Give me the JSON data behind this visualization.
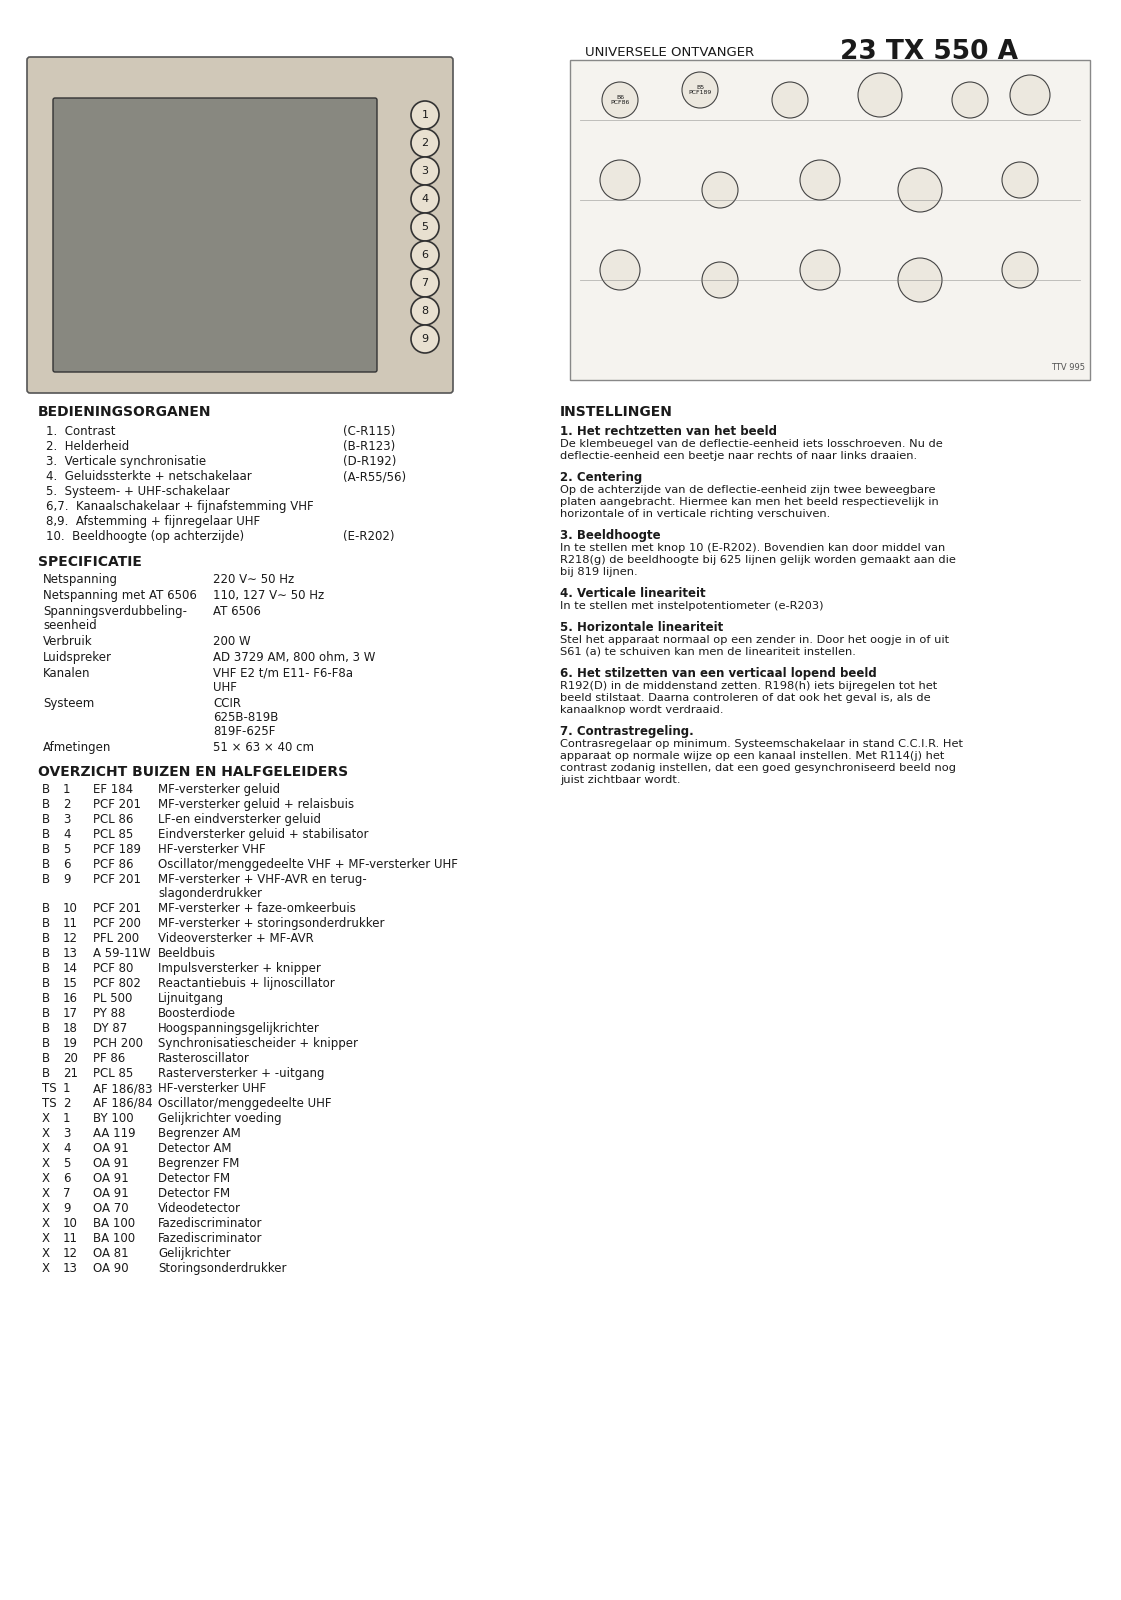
{
  "title_small": "UNIVERSELE ONTVANGER",
  "title_model": "23 TX 550 A",
  "bg_color": "#ffffff",
  "text_color": "#1a1a1a",
  "bedieningsorganen_title": "BEDIENINGSORGANEN",
  "bedieningsorganen_items": [
    [
      "1.  Contrast",
      "(C-R115)"
    ],
    [
      "2.  Helderheid",
      "(B-R123)"
    ],
    [
      "3.  Verticale synchronisatie",
      "(D-R192)"
    ],
    [
      "4.  Geluidssterkte + netschakelaar",
      "(A-R55/56)"
    ],
    [
      "5.  Systeem- + UHF-schakelaar",
      ""
    ],
    [
      "6,7.  Kanaalschakelaar + fijnafstemming VHF",
      ""
    ],
    [
      "8,9.  Afstemming + fijnregelaar UHF",
      ""
    ],
    [
      "10.  Beeldhoogte (op achterzijde)",
      "(E-R202)"
    ]
  ],
  "specificatie_title": "SPECIFICATIE",
  "specificatie_items": [
    [
      "Netspanning",
      "220 V∼ 50 Hz"
    ],
    [
      "Netspanning met AT 6506",
      "110, 127 V∼ 50 Hz"
    ],
    [
      "Spanningsverdubbeling-\nseenheid",
      "AT 6506"
    ],
    [
      "Verbruik",
      "200 W"
    ],
    [
      "Luidspreker",
      "AD 3729 AM, 800 ohm, 3 W"
    ],
    [
      "Kanalen",
      "VHF E2 t/m E11- F6-F8a\nUHF"
    ],
    [
      "Systeem",
      "CCIR\n625B-819B\n819F-625F"
    ],
    [
      "Afmetingen",
      "51 × 63 × 40 cm"
    ]
  ],
  "overzicht_title": "OVERZICHT BUIZEN EN HALFGELEIDERS",
  "overzicht_items": [
    [
      "B",
      "1",
      "EF 184",
      "MF-versterker geluid"
    ],
    [
      "B",
      "2",
      "PCF 201",
      "MF-versterker geluid + relaisbuis"
    ],
    [
      "B",
      "3",
      "PCL 86",
      "LF-en eindversterker geluid"
    ],
    [
      "B",
      "4",
      "PCL 85",
      "Eindversterker geluid + stabilisator"
    ],
    [
      "B",
      "5",
      "PCF 189",
      "HF-versterker VHF"
    ],
    [
      "B",
      "6",
      "PCF 86",
      "Oscillator/menggedeelte VHF + MF-versterker UHF"
    ],
    [
      "B",
      "9",
      "PCF 201",
      "MF-versterker + VHF-AVR en terug-\nslagonderdrukker"
    ],
    [
      "B",
      "10",
      "PCF 201",
      "MF-versterker + faze-omkeerbuis"
    ],
    [
      "B",
      "11",
      "PCF 200",
      "MF-versterker + storingsonderdrukker"
    ],
    [
      "B",
      "12",
      "PFL 200",
      "Videoversterker + MF-AVR"
    ],
    [
      "B",
      "13",
      "A 59-11W",
      "Beeldbuis"
    ],
    [
      "B",
      "14",
      "PCF 80",
      "Impulsversterker + knipper"
    ],
    [
      "B",
      "15",
      "PCF 802",
      "Reactantiebuis + lijnoscillator"
    ],
    [
      "B",
      "16",
      "PL 500",
      "Lijnuitgang"
    ],
    [
      "B",
      "17",
      "PY 88",
      "Boosterdiode"
    ],
    [
      "B",
      "18",
      "DY 87",
      "Hoogspanningsgelijkrichter"
    ],
    [
      "B",
      "19",
      "PCH 200",
      "Synchronisatiescheider + knipper"
    ],
    [
      "B",
      "20",
      "PF 86",
      "Rasteroscillator"
    ],
    [
      "B",
      "21",
      "PCL 85",
      "Rasterversterker + -uitgang"
    ],
    [
      "TS",
      "1",
      "AF 186/83",
      "HF-versterker UHF"
    ],
    [
      "TS",
      "2",
      "AF 186/84",
      "Oscillator/menggedeelte UHF"
    ],
    [
      "X",
      "1",
      "BY 100",
      "Gelijkrichter voeding"
    ],
    [
      "X",
      "3",
      "AA 119",
      "Begrenzer AM"
    ],
    [
      "X",
      "4",
      "OA 91",
      "Detector AM"
    ],
    [
      "X",
      "5",
      "OA 91",
      "Begrenzer FM"
    ],
    [
      "X",
      "6",
      "OA 91",
      "Detector FM"
    ],
    [
      "X",
      "7",
      "OA 91",
      "Detector FM"
    ],
    [
      "X",
      "9",
      "OA 70",
      "Videodetector"
    ],
    [
      "X",
      "10",
      "BA 100",
      "Fazediscriminator"
    ],
    [
      "X",
      "11",
      "BA 100",
      "Fazediscriminator"
    ],
    [
      "X",
      "12",
      "OA 81",
      "Gelijkrichter"
    ],
    [
      "X",
      "13",
      "OA 90",
      "Storingsonderdrukker"
    ]
  ],
  "instellingen_title": "INSTELLINGEN",
  "instellingen_sections": [
    {
      "num": "1.",
      "title": "Het rechtzetten van het beeld",
      "text": "De klembeuegel van de deflectie-eenheid iets losschroeven. Nu de deflectie-eenheid een beetje naar rechts of naar links draaien."
    },
    {
      "num": "2.",
      "title": "Centering",
      "text": "Op de achterzijde van de deflectie-eenheid zijn twee beweegbare platen aangebracht. Hiermee kan men het beeld respectievelijk in horizontale of in verticale richting verschuiven."
    },
    {
      "num": "3.",
      "title": "Beeldhoogte",
      "text": "In te stellen met knop 10 (E-R202). Bovendien kan door middel van R218(g) de beeldhoogte bij 625 lijnen gelijk worden gemaakt aan die bij 819 lijnen."
    },
    {
      "num": "4.",
      "title": "Verticale lineariteit",
      "text": "In te stellen met instelpotentiometer (e-R203)"
    },
    {
      "num": "5.",
      "title": "Horizontale lineariteit",
      "text": "Stel het apparaat normaal op een zender in. Door het oogje in of uit S61 (a) te schuiven kan men de lineariteit instellen."
    },
    {
      "num": "6.",
      "title": "Het stilzetten van een verticaal lopend beeld",
      "text": "R192(D) in de middenstand zetten. R198(h) iets bijregelen tot het beeld stilstaat. Daarna controleren of dat ook het geval is, als de kanaalknop wordt verdraaid."
    },
    {
      "num": "7.",
      "title": "Contrastregeling.",
      "text": "Contrasregelaar op minimum. Systeemschakelaar in stand C.C.I.R. Het apparaat op normale wijze op een kanaal instellen. Met R114(j) het contrast zodanig instellen, dat een goed gesynchroniseerd beeld nog juist zichtbaar wordt."
    }
  ]
}
